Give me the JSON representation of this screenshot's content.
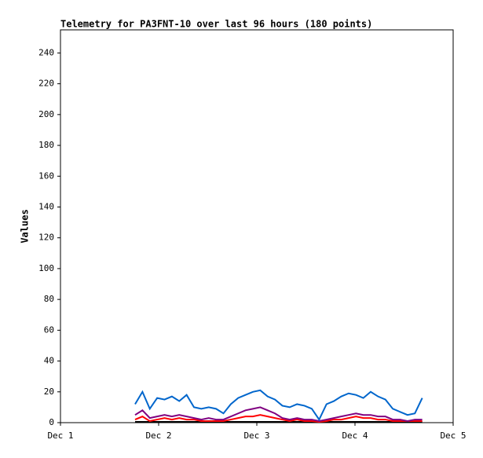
{
  "chart_data": {
    "type": "line",
    "title": "Telemetry for PA3FNT-10 over last 96 hours (180 points)",
    "y_label": "Values",
    "x": [
      0.76,
      0.835,
      0.91,
      0.985,
      1.06,
      1.135,
      1.21,
      1.285,
      1.36,
      1.435,
      1.51,
      1.585,
      1.66,
      1.735,
      1.81,
      1.885,
      1.96,
      2.035,
      2.11,
      2.185,
      2.26,
      2.335,
      2.41,
      2.485,
      2.56,
      2.635,
      2.71,
      2.785,
      2.86,
      2.935,
      3.01,
      3.085,
      3.16,
      3.235,
      3.31,
      3.385,
      3.46,
      3.535,
      3.61,
      3.685
    ],
    "series": [
      {
        "color": "#0066cc",
        "values": [
          12,
          20,
          9,
          16,
          15,
          17,
          14,
          18,
          10,
          9,
          10,
          9,
          6,
          12,
          16,
          18,
          20,
          21,
          17,
          15,
          11,
          10,
          12,
          11,
          9,
          2,
          12,
          14,
          17,
          19,
          18,
          16,
          20,
          17,
          15,
          9,
          7,
          5,
          6,
          16
        ]
      },
      {
        "color": "#800080",
        "values": [
          5,
          8,
          3,
          4,
          5,
          4,
          5,
          4,
          3,
          2,
          3,
          2,
          2,
          4,
          6,
          8,
          9,
          10,
          8,
          6,
          3,
          2,
          3,
          2,
          2,
          1,
          2,
          3,
          4,
          5,
          6,
          5,
          5,
          4,
          4,
          2,
          2,
          1,
          2,
          2
        ]
      },
      {
        "color": "#ff0000",
        "values": [
          2,
          4,
          1,
          2,
          3,
          2,
          3,
          2,
          2,
          1,
          1,
          1,
          1,
          2,
          3,
          4,
          4,
          5,
          4,
          3,
          2,
          1,
          2,
          1,
          1,
          0.5,
          1,
          2,
          2,
          3,
          4,
          3,
          3,
          2,
          2,
          1,
          1,
          1,
          1,
          1
        ]
      },
      {
        "color": "#000000",
        "values": [
          0.5,
          0.5,
          0.5,
          0.5,
          0.5,
          0.5,
          0.5,
          0.5,
          0.5,
          0.5,
          0.5,
          0.5,
          0.5,
          0.5,
          0.5,
          0.5,
          0.5,
          0.5,
          0.5,
          0.5,
          0.5,
          0.5,
          0.5,
          0.5,
          0.5,
          0.5,
          0.5,
          0.5,
          0.5,
          0.5,
          0.5,
          0.5,
          0.5,
          0.5,
          0.5,
          0.5,
          0.5,
          0.5,
          0.5,
          0.5
        ]
      }
    ],
    "xlim": [
      0,
      4
    ],
    "xticks": [
      {
        "value": 0,
        "label": "Dec 1"
      },
      {
        "value": 1,
        "label": "Dec 2"
      },
      {
        "value": 2,
        "label": "Dec 3"
      },
      {
        "value": 3,
        "label": "Dec 4"
      },
      {
        "value": 4,
        "label": "Dec 5"
      }
    ],
    "ylim": [
      0,
      255
    ],
    "yticks": [
      0,
      20,
      40,
      60,
      80,
      100,
      120,
      140,
      160,
      180,
      200,
      220,
      240
    ]
  }
}
